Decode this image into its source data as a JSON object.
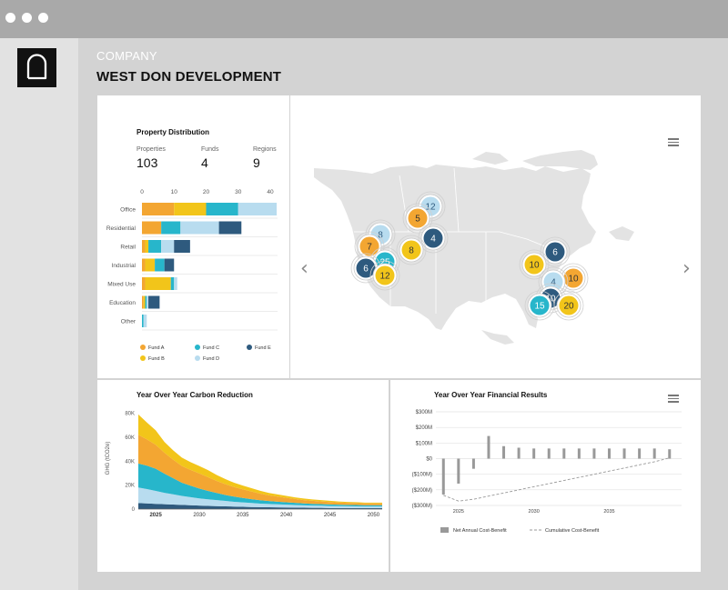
{
  "header": {
    "company": "COMPANY",
    "title": "WEST DON DEVELOPMENT"
  },
  "colors": {
    "fund_a": "#f3a632",
    "fund_b": "#f2c51a",
    "fund_c": "#27b6cb",
    "fund_d": "#b8dcef",
    "fund_e": "#2e5a7e",
    "accent": "#111111"
  },
  "property": {
    "title": "Property Distribution",
    "stats": [
      {
        "label": "Properties",
        "value": "103"
      },
      {
        "label": "Funds",
        "value": "4"
      },
      {
        "label": "Regions",
        "value": "9"
      }
    ],
    "chart_data": {
      "type": "bar",
      "orientation": "horizontal",
      "stacked": true,
      "categories": [
        "Office",
        "Residential",
        "Retail",
        "Industrial",
        "Mixed Use",
        "Education",
        "Other"
      ],
      "xlim": [
        0,
        42
      ],
      "xticks": [
        "0",
        "10",
        "20",
        "30",
        "40"
      ],
      "series": [
        {
          "name": "Fund A",
          "color": "#f3a632",
          "values": [
            10,
            6,
            1,
            1,
            1,
            0.5,
            0
          ]
        },
        {
          "name": "Fund B",
          "color": "#f2c51a",
          "values": [
            10,
            0,
            1,
            3,
            8,
            0.5,
            0
          ]
        },
        {
          "name": "Fund C",
          "color": "#27b6cb",
          "values": [
            10,
            6,
            4,
            3,
            1,
            0.5,
            0.5
          ]
        },
        {
          "name": "Fund D",
          "color": "#b8dcef",
          "values": [
            12,
            12,
            4,
            0,
            1,
            0.5,
            1
          ]
        },
        {
          "name": "Fund E",
          "color": "#2e5a7e",
          "values": [
            0,
            7,
            5,
            3,
            0,
            3.5,
            0
          ]
        }
      ],
      "legend": [
        {
          "label": "Fund A",
          "color": "#f3a632"
        },
        {
          "label": "Fund C",
          "color": "#27b6cb"
        },
        {
          "label": "Fund E",
          "color": "#2e5a7e"
        },
        {
          "label": "Fund B",
          "color": "#f2c51a"
        },
        {
          "label": "Fund D",
          "color": "#b8dcef"
        }
      ]
    }
  },
  "map": {
    "clusters": [
      {
        "value": "12",
        "color": "#b8dcef"
      },
      {
        "value": "5",
        "color": "#f3a632"
      },
      {
        "value": "4",
        "color": "#2e5a7e"
      },
      {
        "value": "8",
        "color": "#b8dcef"
      },
      {
        "value": "7",
        "color": "#f3a632"
      },
      {
        "value": "8",
        "color": "#f2c51a"
      },
      {
        "value": "25",
        "color": "#27b6cb"
      },
      {
        "value": "6",
        "color": "#2e5a7e"
      },
      {
        "value": "12",
        "color": "#f2c51a"
      },
      {
        "value": "6",
        "color": "#2e5a7e"
      },
      {
        "value": "10",
        "color": "#f2c51a"
      },
      {
        "value": "10",
        "color": "#f3a632"
      },
      {
        "value": "4",
        "color": "#b8dcef"
      },
      {
        "value": "10",
        "color": "#2e5a7e"
      },
      {
        "value": "15",
        "color": "#27b6cb"
      },
      {
        "value": "20",
        "color": "#f2c51a"
      }
    ]
  },
  "carbon": {
    "title": "Year Over Year Carbon Reduction",
    "chart_data": {
      "type": "area",
      "stacked": true,
      "ylabel": "GHG (tCO2e)",
      "ylim": [
        0,
        85000
      ],
      "yticks": [
        "0",
        "20K",
        "40K",
        "60K",
        "80K"
      ],
      "xticks": [
        "2025",
        "2030",
        "2035",
        "2040",
        "2045",
        "2050"
      ],
      "x": [
        2023,
        2024,
        2025,
        2026,
        2027,
        2028,
        2029,
        2030,
        2031,
        2032,
        2033,
        2034,
        2035,
        2036,
        2037,
        2038,
        2039,
        2040,
        2041,
        2042,
        2043,
        2044,
        2045,
        2046,
        2047,
        2048,
        2049,
        2050,
        2051
      ],
      "series": [
        {
          "name": "dark",
          "color": "#2e5a7e",
          "values": [
            5000,
            4700,
            4400,
            4100,
            3800,
            3500,
            3200,
            2900,
            2700,
            2500,
            2300,
            2100,
            1900,
            1700,
            1600,
            1500,
            1400,
            1300,
            1200,
            1100,
            1000,
            1000,
            900,
            900,
            900,
            800,
            800,
            800,
            800
          ]
        },
        {
          "name": "light",
          "color": "#b8dcef",
          "values": [
            13000,
            12000,
            10800,
            9500,
            8500,
            7500,
            6800,
            6000,
            5500,
            5000,
            4500,
            4000,
            3700,
            3400,
            3000,
            2800,
            2600,
            2400,
            2200,
            2000,
            1900,
            1800,
            1700,
            1600,
            1500,
            1500,
            1400,
            1400,
            1400
          ]
        },
        {
          "name": "teal",
          "color": "#27b6cb",
          "values": [
            20000,
            19500,
            18500,
            16000,
            13500,
            11000,
            9500,
            8300,
            7000,
            6000,
            5000,
            4300,
            3700,
            3200,
            2800,
            2400,
            2200,
            2000,
            1800,
            1600,
            1500,
            1400,
            1300,
            1200,
            1100,
            1100,
            1000,
            1000,
            1000
          ]
        },
        {
          "name": "orange",
          "color": "#f3a632",
          "values": [
            24000,
            22000,
            20000,
            17500,
            15500,
            14000,
            13200,
            12600,
            11500,
            10000,
            9000,
            8000,
            7200,
            6400,
            5500,
            4800,
            4200,
            3700,
            3200,
            2800,
            2500,
            2200,
            2000,
            1800,
            1700,
            1600,
            1500,
            1500,
            1500
          ]
        },
        {
          "name": "yellow",
          "color": "#f2c51a",
          "values": [
            17000,
            14000,
            12000,
            9000,
            7700,
            7000,
            6500,
            6200,
            5800,
            5000,
            4200,
            3600,
            3100,
            2800,
            2400,
            2000,
            1800,
            1600,
            1400,
            1300,
            1200,
            1100,
            1000,
            900,
            800,
            800,
            700,
            700,
            700
          ]
        }
      ]
    }
  },
  "financial": {
    "title": "Year Over Year Financial Results",
    "chart_data": {
      "type": "bar",
      "yticks": [
        "$300M",
        "$200M",
        "$100M",
        "$0",
        "($100M)",
        "($200M)",
        "($300M)"
      ],
      "ylim": [
        -300,
        300
      ],
      "xticks": [
        "2025",
        "2030",
        "2035"
      ],
      "x": [
        2024,
        2025,
        2026,
        2027,
        2028,
        2029,
        2030,
        2031,
        2032,
        2033,
        2034,
        2035,
        2036,
        2037,
        2038,
        2039
      ],
      "series": [
        {
          "name": "Net Annual Cost-Benefit",
          "color": "#999999",
          "values": [
            -230,
            -160,
            -65,
            145,
            80,
            70,
            65,
            65,
            65,
            65,
            65,
            65,
            65,
            65,
            65,
            60
          ]
        },
        {
          "name": "Cumulative Cost-Benefit",
          "color": "#999999",
          "values": [
            -235,
            -272,
            -260,
            -240,
            -220,
            -200,
            -180,
            -160,
            -140,
            -120,
            -100,
            -80,
            -60,
            -40,
            -20,
            5
          ]
        }
      ],
      "legend": [
        "Net Annual Cost-Benefit",
        "Cumulative Cost-Benefit"
      ]
    }
  }
}
